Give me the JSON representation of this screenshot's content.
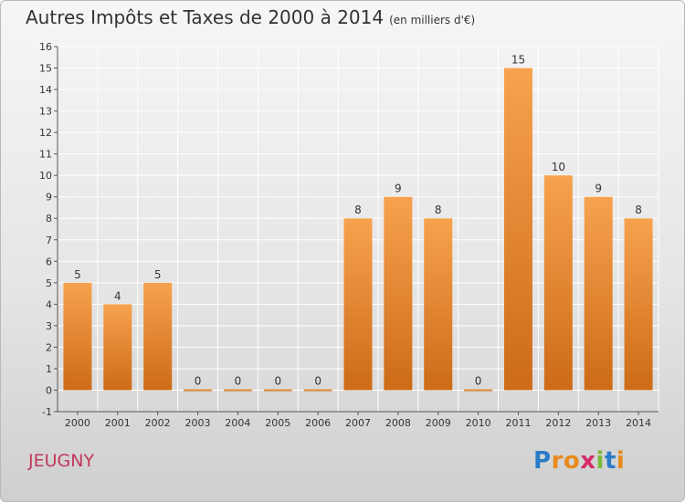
{
  "header": {
    "title": "Autres Impôts et Taxes de 2000 à 2014",
    "subtitle": "(en milliers d'€)"
  },
  "footer": {
    "commune": "JEUGNY",
    "logo": "Proxiti",
    "logo_letters": [
      {
        "char": "P",
        "color": "#2a7cc7"
      },
      {
        "char": "r",
        "color": "#e88a1c"
      },
      {
        "char": "o",
        "color": "#e88a1c"
      },
      {
        "char": "x",
        "color": "#d42b6a"
      },
      {
        "char": "i",
        "color": "#7bb83a"
      },
      {
        "char": "t",
        "color": "#2a7cc7"
      },
      {
        "char": "i",
        "color": "#e88a1c"
      }
    ]
  },
  "colors": {
    "bar_top": "#f7a24e",
    "bar_bottom": "#cd6b17",
    "axis": "#555555",
    "grid": "#ffffff"
  },
  "chart_data": {
    "type": "bar",
    "categories": [
      "2000",
      "2001",
      "2002",
      "2003",
      "2004",
      "2005",
      "2006",
      "2007",
      "2008",
      "2009",
      "2010",
      "2011",
      "2012",
      "2013",
      "2014"
    ],
    "values": [
      5,
      4,
      5,
      0,
      0,
      0,
      0,
      8,
      9,
      8,
      0,
      15,
      10,
      9,
      8
    ],
    "ylim": [
      -1,
      16
    ],
    "yticks": [
      -1,
      0,
      1,
      2,
      3,
      4,
      5,
      6,
      7,
      8,
      9,
      10,
      11,
      12,
      13,
      14,
      15,
      16
    ],
    "grid": true
  }
}
